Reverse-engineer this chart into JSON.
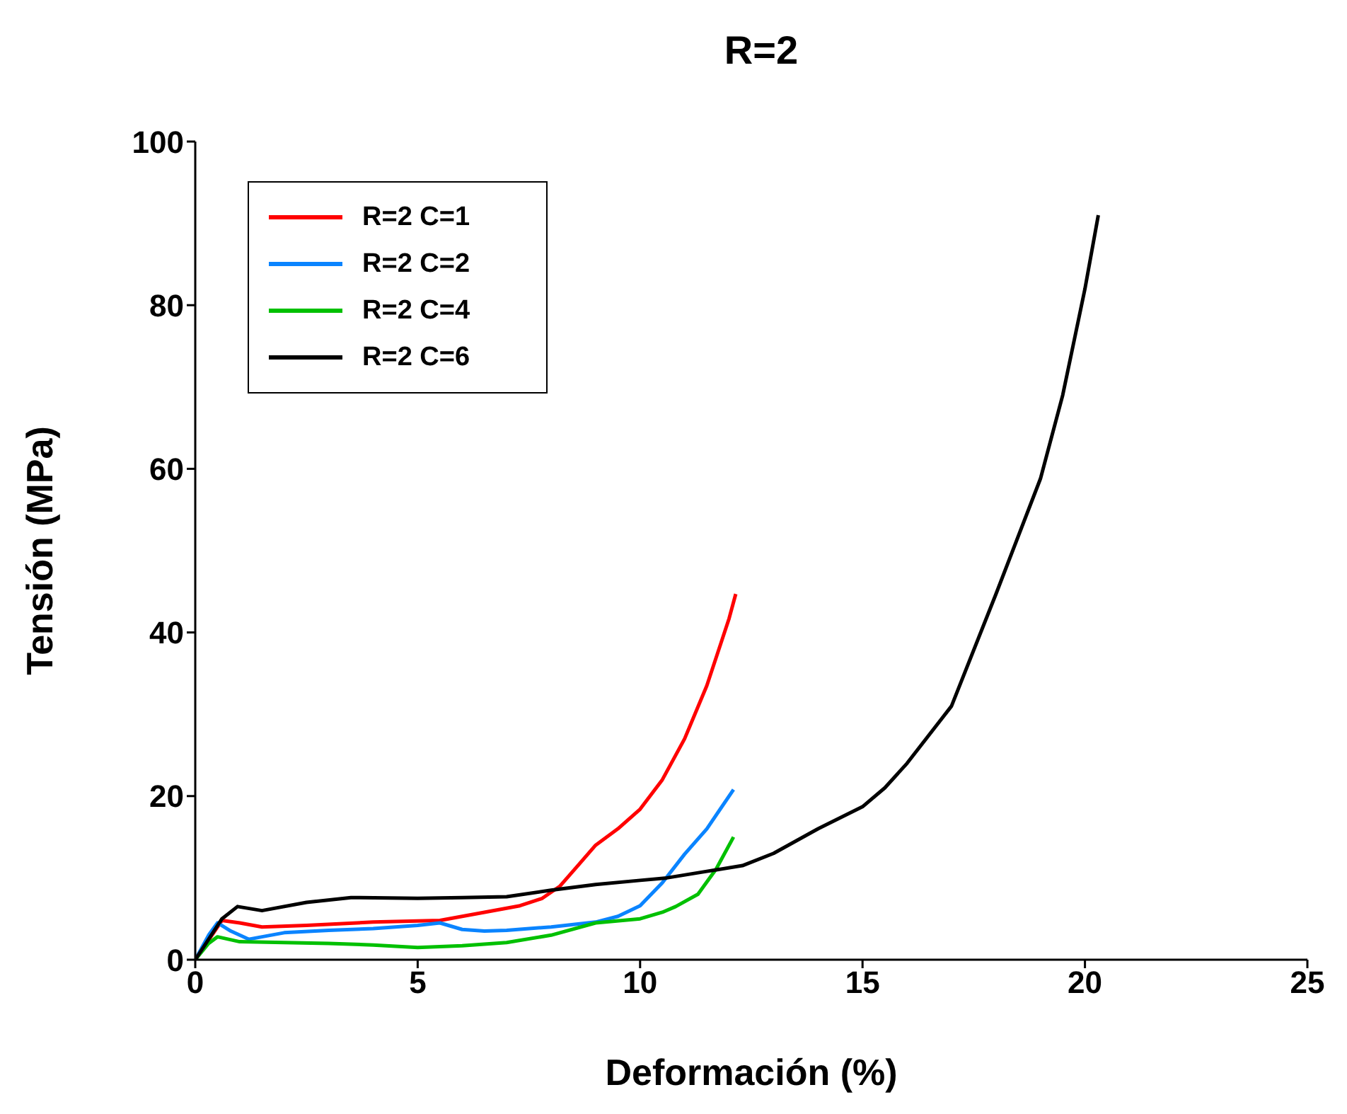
{
  "chart_data": {
    "type": "line",
    "title": "R=2",
    "xlabel": "Deformación (%)",
    "ylabel": "Tensión (MPa)",
    "xlim": [
      0,
      25
    ],
    "xticks": [
      0,
      5,
      10,
      15,
      20,
      25
    ],
    "ylim": [
      0,
      100
    ],
    "yticks": [
      0,
      20,
      40,
      60,
      80,
      100
    ],
    "grid": false,
    "legend": "top left",
    "marker": "none",
    "line_style": "solid",
    "series": [
      {
        "name": "R=2 C=1",
        "color": "#ff0000",
        "x": [
          0,
          0.6,
          1,
          1.5,
          2.5,
          4,
          5.5,
          6.5,
          7.3,
          7.8,
          8.2,
          8.6,
          9,
          9.5,
          10,
          10.5,
          11,
          11.5,
          12,
          12.15
        ],
        "values": [
          0,
          4.8,
          4.5,
          4,
          4.2,
          4.6,
          4.8,
          5.8,
          6.6,
          7.5,
          9,
          11.5,
          14,
          16,
          18.4,
          22,
          27,
          33.5,
          41.7,
          44.7
        ]
      },
      {
        "name": "R=2 C=2",
        "color": "#0a84ff",
        "x": [
          0,
          0.3,
          0.5,
          0.8,
          1.2,
          2,
          3,
          4,
          5,
          5.5,
          6,
          6.5,
          7,
          8,
          9,
          9.5,
          10,
          10.5,
          11,
          11.5,
          12.1
        ],
        "values": [
          0,
          3,
          4.5,
          3.5,
          2.5,
          3.3,
          3.6,
          3.8,
          4.2,
          4.5,
          3.7,
          3.5,
          3.6,
          4,
          4.6,
          5.3,
          6.6,
          9.4,
          12.9,
          16,
          20.8
        ]
      },
      {
        "name": "R=2 C=4",
        "color": "#00c000",
        "x": [
          0,
          0.3,
          0.5,
          1,
          2,
          3,
          4,
          5,
          6,
          7,
          8,
          9,
          10,
          10.5,
          10.8,
          11.3,
          11.7,
          12.1
        ],
        "values": [
          0,
          2,
          2.8,
          2.2,
          2.1,
          2,
          1.8,
          1.5,
          1.7,
          2.1,
          3,
          4.5,
          5,
          5.8,
          6.5,
          8,
          11,
          15
        ]
      },
      {
        "name": "R=2 C=6",
        "color": "#000000",
        "x": [
          0,
          0.3,
          0.6,
          0.95,
          1.5,
          2.5,
          3.5,
          5,
          6,
          7,
          8,
          9,
          10,
          10.6,
          11.5,
          12.3,
          13,
          14,
          15,
          15.5,
          16,
          17,
          18,
          19,
          19.5,
          20,
          20.3
        ],
        "values": [
          0,
          2.5,
          5,
          6.5,
          6,
          7,
          7.6,
          7.5,
          7.6,
          7.7,
          8.5,
          9.2,
          9.7,
          10,
          10.8,
          11.5,
          13,
          16,
          18.7,
          21,
          24,
          31,
          44.7,
          58.8,
          69,
          82,
          91
        ]
      }
    ]
  }
}
